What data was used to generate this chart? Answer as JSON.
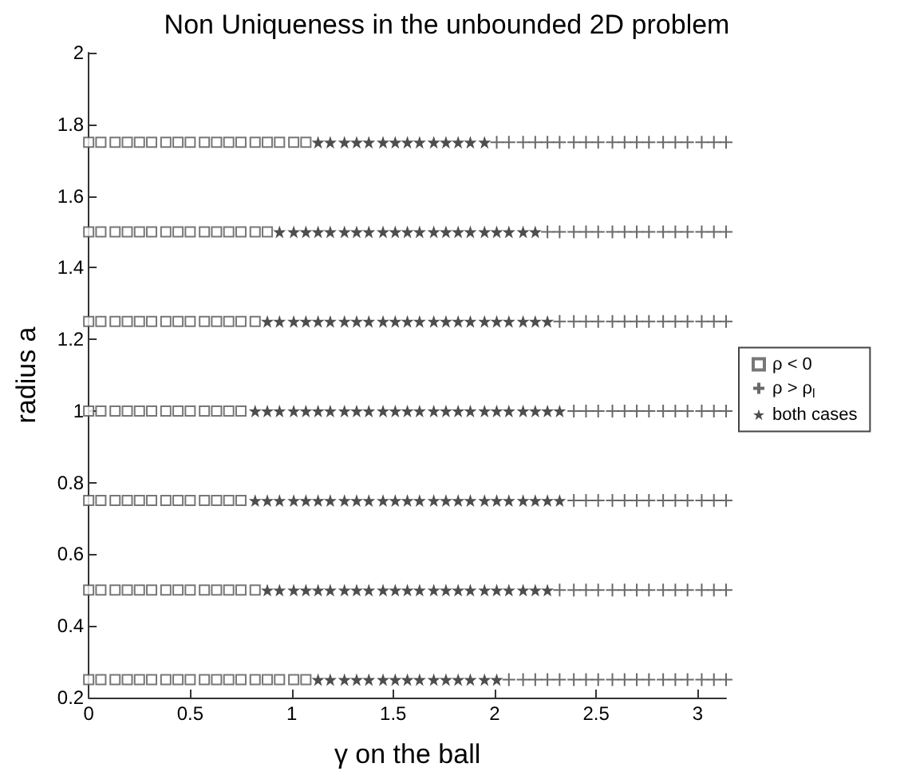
{
  "chart_data": {
    "type": "scatter",
    "title": "Non Uniqueness in the unbounded 2D problem",
    "xlabel": "γ on the ball",
    "ylabel": "radius a",
    "xlim": [
      0,
      3.14
    ],
    "xticks": [
      0,
      0.5,
      1,
      1.5,
      2,
      2.5,
      3
    ],
    "ylim": [
      0.2,
      2
    ],
    "yticks": [
      0.2,
      0.4,
      0.6,
      0.8,
      1,
      1.2,
      1.4,
      1.6,
      1.8,
      2
    ],
    "grid": false,
    "legend": "right",
    "series": [
      {
        "name": "ρ < 0",
        "color": "#555555",
        "marker": "square",
        "x": [
          0,
          0.06,
          0.13,
          0.19,
          0.25,
          0.31,
          0.38,
          0.44,
          0.5,
          0.57,
          0.63,
          0.69,
          0.75,
          0.82,
          0.88,
          0.94,
          1.01,
          1.07,
          0,
          0.06,
          0.13,
          0.19,
          0.25,
          0.31,
          0.38,
          0.44,
          0.5,
          0.57,
          0.63,
          0.69,
          0.75,
          0.82,
          0.88,
          0,
          0.06,
          0.13,
          0.19,
          0.25,
          0.31,
          0.38,
          0.44,
          0.5,
          0.57,
          0.63,
          0.69,
          0.75,
          0.82,
          0,
          0.06,
          0.13,
          0.19,
          0.25,
          0.31,
          0.38,
          0.44,
          0.5,
          0.57,
          0.63,
          0.69,
          0.75,
          0,
          0.06,
          0.13,
          0.19,
          0.25,
          0.31,
          0.38,
          0.44,
          0.5,
          0.57,
          0.63,
          0.69,
          0.75,
          0,
          0.06,
          0.13,
          0.19,
          0.25,
          0.31,
          0.38,
          0.44,
          0.5,
          0.57,
          0.63,
          0.69,
          0.75,
          0.82,
          0,
          0.06,
          0.13,
          0.19,
          0.25,
          0.31,
          0.38,
          0.44,
          0.5,
          0.57,
          0.63,
          0.69,
          0.75,
          0.82,
          0.88,
          0.94,
          1.01,
          1.07
        ],
        "values": [
          1.75,
          1.75,
          1.75,
          1.75,
          1.75,
          1.75,
          1.75,
          1.75,
          1.75,
          1.75,
          1.75,
          1.75,
          1.75,
          1.75,
          1.75,
          1.75,
          1.75,
          1.75,
          1.5,
          1.5,
          1.5,
          1.5,
          1.5,
          1.5,
          1.5,
          1.5,
          1.5,
          1.5,
          1.5,
          1.5,
          1.5,
          1.5,
          1.5,
          1.25,
          1.25,
          1.25,
          1.25,
          1.25,
          1.25,
          1.25,
          1.25,
          1.25,
          1.25,
          1.25,
          1.25,
          1.25,
          1.25,
          1,
          1,
          1,
          1,
          1,
          1,
          1,
          1,
          1,
          1,
          1,
          1,
          1,
          0.75,
          0.75,
          0.75,
          0.75,
          0.75,
          0.75,
          0.75,
          0.75,
          0.75,
          0.75,
          0.75,
          0.75,
          0.75,
          0.5,
          0.5,
          0.5,
          0.5,
          0.5,
          0.5,
          0.5,
          0.5,
          0.5,
          0.5,
          0.5,
          0.5,
          0.5,
          0.5,
          0.25,
          0.25,
          0.25,
          0.25,
          0.25,
          0.25,
          0.25,
          0.25,
          0.25,
          0.25,
          0.25,
          0.25,
          0.25,
          0.25,
          0.25,
          0.25,
          0.25,
          0.25
        ]
      },
      {
        "name": "ρ > ρ$_{l}$",
        "color": "#444444",
        "marker": "cross",
        "x": [
          2.01,
          2.07,
          2.14,
          2.2,
          2.26,
          2.32,
          2.39,
          2.45,
          2.51,
          2.58,
          2.64,
          2.7,
          2.76,
          2.83,
          2.89,
          2.95,
          3.02,
          3.08,
          3.14,
          2.26,
          2.32,
          2.39,
          2.45,
          2.51,
          2.58,
          2.64,
          2.7,
          2.76,
          2.83,
          2.89,
          2.95,
          3.02,
          3.08,
          3.14,
          2.32,
          2.39,
          2.45,
          2.51,
          2.58,
          2.64,
          2.7,
          2.76,
          2.83,
          2.89,
          2.95,
          3.02,
          3.08,
          3.14,
          2.39,
          2.45,
          2.51,
          2.58,
          2.64,
          2.7,
          2.76,
          2.83,
          2.89,
          2.95,
          3.02,
          3.08,
          3.14,
          2.39,
          2.45,
          2.51,
          2.58,
          2.64,
          2.7,
          2.76,
          2.83,
          2.89,
          2.95,
          3.02,
          3.08,
          3.14,
          2.32,
          2.39,
          2.45,
          2.51,
          2.58,
          2.64,
          2.7,
          2.76,
          2.83,
          2.89,
          2.95,
          3.02,
          3.08,
          3.14,
          2.07,
          2.14,
          2.2,
          2.26,
          2.32,
          2.39,
          2.45,
          2.51,
          2.58,
          2.64,
          2.7,
          2.76,
          2.83,
          2.89,
          2.95,
          3.02,
          3.08,
          3.14
        ],
        "values": [
          1.75,
          1.75,
          1.75,
          1.75,
          1.75,
          1.75,
          1.75,
          1.75,
          1.75,
          1.75,
          1.75,
          1.75,
          1.75,
          1.75,
          1.75,
          1.75,
          1.75,
          1.75,
          1.75,
          1.5,
          1.5,
          1.5,
          1.5,
          1.5,
          1.5,
          1.5,
          1.5,
          1.5,
          1.5,
          1.5,
          1.5,
          1.5,
          1.5,
          1.5,
          1.25,
          1.25,
          1.25,
          1.25,
          1.25,
          1.25,
          1.25,
          1.25,
          1.25,
          1.25,
          1.25,
          1.25,
          1.25,
          1.25,
          1,
          1,
          1,
          1,
          1,
          1,
          1,
          1,
          1,
          1,
          1,
          1,
          1,
          0.75,
          0.75,
          0.75,
          0.75,
          0.75,
          0.75,
          0.75,
          0.75,
          0.75,
          0.75,
          0.75,
          0.75,
          0.75,
          0.5,
          0.5,
          0.5,
          0.5,
          0.5,
          0.5,
          0.5,
          0.5,
          0.5,
          0.5,
          0.5,
          0.5,
          0.5,
          0.5,
          0.25,
          0.25,
          0.25,
          0.25,
          0.25,
          0.25,
          0.25,
          0.25,
          0.25,
          0.25,
          0.25,
          0.25,
          0.25,
          0.25,
          0.25,
          0.25,
          0.25,
          0.25
        ]
      },
      {
        "name": "both cases",
        "color": "#222222",
        "marker": "star",
        "x": [
          1.13,
          1.19,
          1.26,
          1.32,
          1.38,
          1.45,
          1.51,
          1.57,
          1.63,
          1.7,
          1.76,
          1.82,
          1.88,
          1.95,
          0.94,
          1.01,
          1.07,
          1.13,
          1.19,
          1.26,
          1.32,
          1.38,
          1.45,
          1.51,
          1.57,
          1.63,
          1.7,
          1.76,
          1.82,
          1.88,
          1.95,
          2.01,
          2.07,
          2.14,
          2.2,
          0.88,
          0.94,
          1.01,
          1.07,
          1.13,
          1.19,
          1.26,
          1.32,
          1.38,
          1.45,
          1.51,
          1.57,
          1.63,
          1.7,
          1.76,
          1.82,
          1.88,
          1.95,
          2.01,
          2.07,
          2.14,
          2.2,
          2.26,
          0.82,
          0.88,
          0.94,
          1.01,
          1.07,
          1.13,
          1.19,
          1.26,
          1.32,
          1.38,
          1.45,
          1.51,
          1.57,
          1.63,
          1.7,
          1.76,
          1.82,
          1.88,
          1.95,
          2.01,
          2.07,
          2.14,
          2.2,
          2.26,
          2.32,
          0.82,
          0.88,
          0.94,
          1.01,
          1.07,
          1.13,
          1.19,
          1.26,
          1.32,
          1.38,
          1.45,
          1.51,
          1.57,
          1.63,
          1.7,
          1.76,
          1.82,
          1.88,
          1.95,
          2.01,
          2.07,
          2.14,
          2.2,
          2.26,
          2.32,
          0.88,
          0.94,
          1.01,
          1.07,
          1.13,
          1.19,
          1.26,
          1.32,
          1.38,
          1.45,
          1.51,
          1.57,
          1.63,
          1.7,
          1.76,
          1.82,
          1.88,
          1.95,
          2.01,
          2.07,
          2.14,
          2.2,
          2.26,
          1.13,
          1.19,
          1.26,
          1.32,
          1.38,
          1.45,
          1.51,
          1.57,
          1.63,
          1.7,
          1.76,
          1.82,
          1.88,
          1.95,
          2.01
        ],
        "values": [
          1.75,
          1.75,
          1.75,
          1.75,
          1.75,
          1.75,
          1.75,
          1.75,
          1.75,
          1.75,
          1.75,
          1.75,
          1.75,
          1.75,
          1.5,
          1.5,
          1.5,
          1.5,
          1.5,
          1.5,
          1.5,
          1.5,
          1.5,
          1.5,
          1.5,
          1.5,
          1.5,
          1.5,
          1.5,
          1.5,
          1.5,
          1.5,
          1.5,
          1.5,
          1.5,
          1.25,
          1.25,
          1.25,
          1.25,
          1.25,
          1.25,
          1.25,
          1.25,
          1.25,
          1.25,
          1.25,
          1.25,
          1.25,
          1.25,
          1.25,
          1.25,
          1.25,
          1.25,
          1.25,
          1.25,
          1.25,
          1.25,
          1.25,
          1,
          1,
          1,
          1,
          1,
          1,
          1,
          1,
          1,
          1,
          1,
          1,
          1,
          1,
          1,
          1,
          1,
          1,
          1,
          1,
          1,
          1,
          1,
          1,
          1,
          0.75,
          0.75,
          0.75,
          0.75,
          0.75,
          0.75,
          0.75,
          0.75,
          0.75,
          0.75,
          0.75,
          0.75,
          0.75,
          0.75,
          0.75,
          0.75,
          0.75,
          0.75,
          0.75,
          0.75,
          0.75,
          0.75,
          0.75,
          0.75,
          0.75,
          0.5,
          0.5,
          0.5,
          0.5,
          0.5,
          0.5,
          0.5,
          0.5,
          0.5,
          0.5,
          0.5,
          0.5,
          0.5,
          0.5,
          0.5,
          0.5,
          0.5,
          0.5,
          0.5,
          0.5,
          0.5,
          0.5,
          0.5,
          0.25,
          0.25,
          0.25,
          0.25,
          0.25,
          0.25,
          0.25,
          0.25,
          0.25,
          0.25,
          0.25,
          0.25,
          0.25,
          0.25,
          0.25
        ]
      }
    ]
  }
}
